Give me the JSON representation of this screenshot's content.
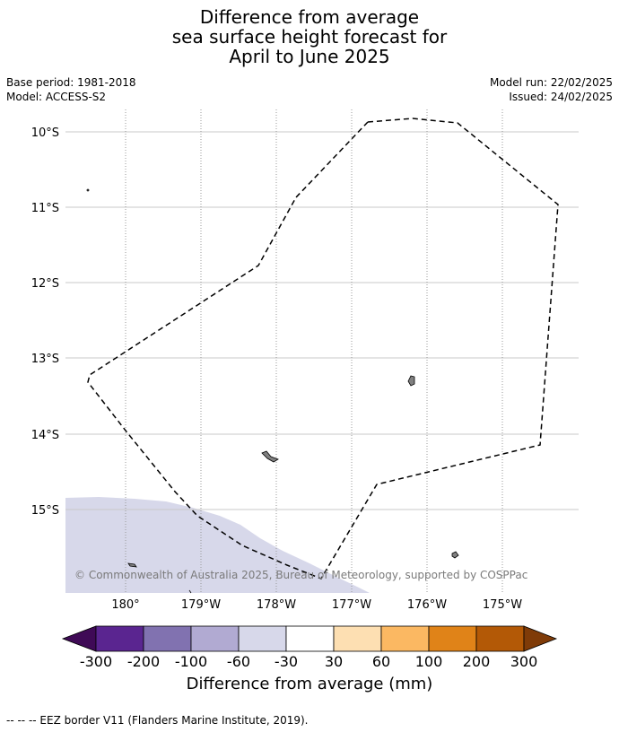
{
  "title": {
    "line1": "Difference from average",
    "line2": "sea surface height forecast for",
    "line3": "April to June 2025"
  },
  "meta": {
    "base_period": "Base period: 1981-2018",
    "model": "Model: ACCESS-S2",
    "model_run": "Model run: 22/02/2025",
    "issued": "Issued: 24/02/2025"
  },
  "map": {
    "lat_labels": [
      "10°S",
      "11°S",
      "12°S",
      "13°S",
      "14°S",
      "15°S"
    ],
    "lon_labels": [
      "180°",
      "179°W",
      "178°W",
      "177°W",
      "176°W",
      "175°W"
    ],
    "copyright": "© Commonwealth of Australia 2025, Bureau of Meteorology, supported by COSPPac",
    "anomaly_color": "#d7d8ea",
    "land_color": "#808080"
  },
  "colorbar": {
    "title": "Difference from average (mm)",
    "tick_labels": [
      "-300",
      "-200",
      "-100",
      "-60",
      "-30",
      "30",
      "60",
      "100",
      "200",
      "300"
    ],
    "colors": [
      "#3f0a56",
      "#5a2590",
      "#8172b0",
      "#b1aad2",
      "#d7d8ea",
      "#ffffff",
      "#fddfb2",
      "#fbb862",
      "#e08318",
      "#b35906",
      "#7f3b08"
    ]
  },
  "footer": {
    "legend_text": "-- -- -- EEZ border V11 (Flanders Marine Institute, 2019)."
  }
}
